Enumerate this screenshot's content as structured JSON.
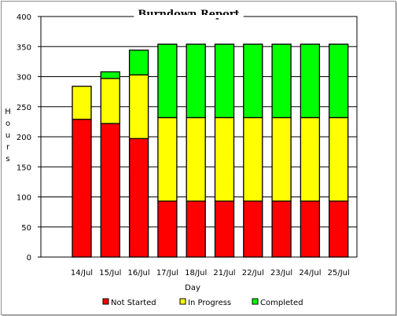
{
  "chart_data": {
    "type": "bar",
    "stacked": true,
    "title": "Burndown Report",
    "xlabel": "Day",
    "ylabel": "Hours",
    "ylim": [
      0,
      400
    ],
    "yticks": [
      0,
      50,
      100,
      150,
      200,
      250,
      300,
      350,
      400
    ],
    "grid": "horizontal",
    "legend_position": "bottom",
    "categories": [
      "14/Jul",
      "15/Jul",
      "16/Jul",
      "17/Jul",
      "18/Jul",
      "21/Jul",
      "22/Jul",
      "23/Jul",
      "24/Jul",
      "25/Jul"
    ],
    "series": [
      {
        "name": "Not Started",
        "color": "#ff0000",
        "values": [
          229,
          222,
          197,
          93,
          93,
          93,
          93,
          93,
          93,
          93
        ]
      },
      {
        "name": "In Progress",
        "color": "#ffff00",
        "values": [
          55,
          75,
          106,
          139,
          139,
          139,
          139,
          139,
          139,
          139
        ]
      },
      {
        "name": "Completed",
        "color": "#00ff00",
        "values": [
          0,
          11,
          41,
          122,
          122,
          122,
          122,
          122,
          122,
          122
        ]
      }
    ]
  }
}
